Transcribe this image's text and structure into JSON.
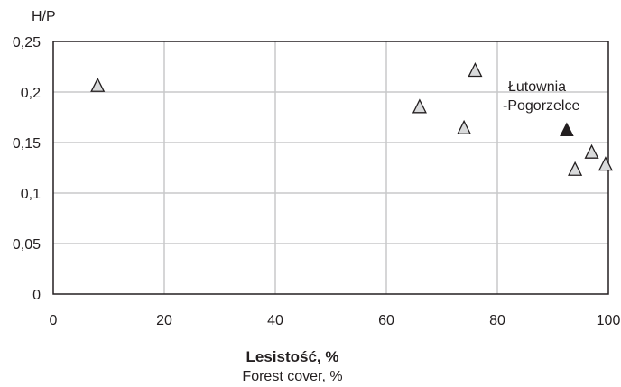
{
  "chart_data": {
    "type": "scatter",
    "ylabel": "H/P",
    "xlabel": "Lesistość, %",
    "xlabel_en": "Forest cover, %",
    "xlim": [
      0,
      100
    ],
    "ylim": [
      0,
      0.25
    ],
    "xticks": [
      0,
      20,
      40,
      60,
      80,
      100
    ],
    "xtick_labels": [
      "0",
      "20",
      "40",
      "60",
      "80",
      "100"
    ],
    "yticks": [
      0,
      0.05,
      0.1,
      0.15,
      0.2,
      0.25
    ],
    "ytick_labels": [
      "0",
      "0,05",
      "0,1",
      "0,15",
      "0,2",
      "0,25"
    ],
    "grid": true,
    "series": [
      {
        "marker": "triangle-open",
        "color": "#d9dadb",
        "x": [
          8,
          66,
          74,
          76,
          94,
          97,
          99.5
        ],
        "y": [
          0.206,
          0.185,
          0.164,
          0.221,
          0.123,
          0.14,
          0.128
        ]
      },
      {
        "marker": "triangle-filled",
        "color": "#231f20",
        "x": [
          92.5
        ],
        "y": [
          0.162
        ]
      }
    ],
    "annotation": {
      "line1": "Łutownia",
      "line2": "-Pogorzelce"
    }
  }
}
